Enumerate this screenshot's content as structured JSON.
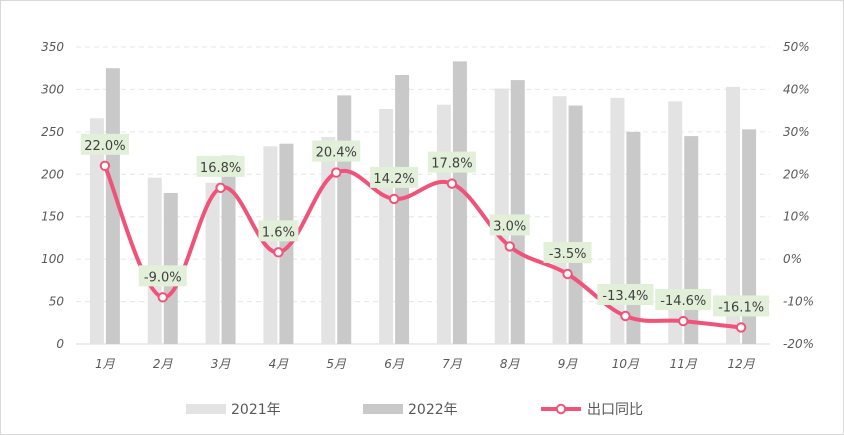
{
  "chart_data": {
    "type": "bar",
    "categories": [
      "1月",
      "2月",
      "3月",
      "4月",
      "5月",
      "6月",
      "7月",
      "8月",
      "9月",
      "10月",
      "11月",
      "12月"
    ],
    "series": [
      {
        "name": "2021年",
        "type": "bar",
        "axis": "left",
        "color": "#e3e3e3",
        "values": [
          266,
          196,
          190,
          233,
          244,
          277,
          282,
          301,
          292,
          290,
          286,
          303
        ]
      },
      {
        "name": "2022年",
        "type": "bar",
        "axis": "left",
        "color": "#c9c9c9",
        "values": [
          325,
          178,
          222,
          236,
          293,
          317,
          333,
          311,
          281,
          250,
          245,
          253
        ]
      },
      {
        "name": "出口同比",
        "type": "line",
        "axis": "right",
        "color": "#f0537a",
        "values": [
          22.0,
          -9.0,
          16.8,
          1.6,
          20.4,
          14.2,
          17.8,
          3.0,
          -3.5,
          -13.4,
          -14.6,
          -16.1
        ],
        "labels": [
          "22.0%",
          "-9.0%",
          "16.8%",
          "1.6%",
          "20.4%",
          "14.2%",
          "17.8%",
          "3.0%",
          "-3.5%",
          "-13.4%",
          "-14.6%",
          "-16.1%"
        ]
      }
    ],
    "y_left": {
      "min": 0,
      "max": 350,
      "ticks": [
        "0",
        "50",
        "100",
        "150",
        "200",
        "250",
        "300",
        "350"
      ]
    },
    "y_right": {
      "min": -20,
      "max": 50,
      "ticks": [
        "-20%",
        "-10%",
        "0%",
        "10%",
        "20%",
        "30%",
        "40%",
        "50%"
      ]
    },
    "grid": true,
    "legend": "bottom"
  }
}
